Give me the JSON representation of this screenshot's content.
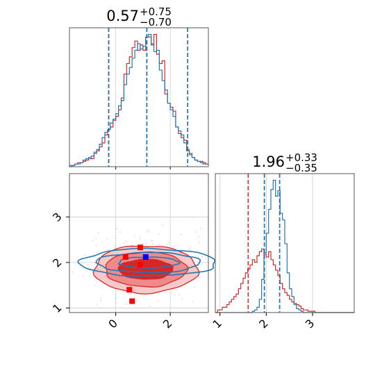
{
  "chart_data": [
    {
      "type": "histogram",
      "panel": "param1-marginal",
      "title": {
        "median": "0.57",
        "upper": "+0.75",
        "lower": "−0.70"
      },
      "xlim": [
        -0.85,
        1.7
      ],
      "ylim": [
        0,
        1.05
      ],
      "grid": true,
      "quantile_lines": {
        "red": [
          -0.13,
          0.57,
          1.32
        ],
        "blue": [
          -0.13,
          0.57,
          1.32
        ]
      },
      "series": [
        {
          "color": "#d62728",
          "bin_edges_start": -0.9,
          "bin_width": 0.05,
          "values": [
            0.0,
            0.0,
            0.01,
            0.02,
            0.03,
            0.03,
            0.05,
            0.05,
            0.07,
            0.06,
            0.1,
            0.12,
            0.15,
            0.18,
            0.24,
            0.28,
            0.3,
            0.35,
            0.38,
            0.43,
            0.52,
            0.7,
            0.78,
            0.83,
            0.9,
            0.95,
            0.88,
            0.92,
            0.88,
            0.98,
            0.98,
            0.92,
            1.0,
            0.85,
            0.78,
            0.8,
            0.55,
            0.48,
            0.45,
            0.42,
            0.3,
            0.25,
            0.22,
            0.2,
            0.12,
            0.1,
            0.07,
            0.05,
            0.04,
            0.04,
            0.03,
            0.02,
            0.01,
            0.01,
            0.0,
            0.0
          ]
        },
        {
          "color": "#1f77b4",
          "bin_edges_start": -0.9,
          "bin_width": 0.05,
          "values": [
            0.0,
            0.01,
            0.01,
            0.02,
            0.02,
            0.03,
            0.04,
            0.06,
            0.06,
            0.08,
            0.11,
            0.13,
            0.17,
            0.22,
            0.26,
            0.28,
            0.33,
            0.36,
            0.4,
            0.46,
            0.5,
            0.62,
            0.7,
            0.75,
            0.82,
            0.88,
            0.93,
            0.89,
            0.91,
            0.98,
            1.0,
            0.93,
            0.87,
            0.88,
            0.73,
            0.65,
            0.58,
            0.48,
            0.43,
            0.38,
            0.3,
            0.27,
            0.24,
            0.18,
            0.13,
            0.09,
            0.07,
            0.05,
            0.04,
            0.03,
            0.02,
            0.02,
            0.01,
            0.01,
            0.0,
            0.0
          ]
        }
      ]
    },
    {
      "type": "histogram",
      "panel": "param2-marginal",
      "title": {
        "median": "1.96",
        "upper": "+0.33",
        "lower": "−0.35"
      },
      "xlim": [
        0.9,
        3.9
      ],
      "xticks": [
        "1",
        "2",
        "3"
      ],
      "ylim": [
        0,
        1.05
      ],
      "grid": true,
      "quantile_lines": {
        "red": [
          1.61,
          1.96,
          2.29
        ],
        "blue": [
          1.96,
          2.29
        ]
      },
      "series": [
        {
          "color": "#d62728",
          "bin_edges_start": 0.9,
          "bin_width": 0.05,
          "values": [
            0.0,
            0.02,
            0.02,
            0.04,
            0.04,
            0.06,
            0.08,
            0.1,
            0.12,
            0.14,
            0.18,
            0.22,
            0.26,
            0.3,
            0.33,
            0.36,
            0.4,
            0.38,
            0.43,
            0.46,
            0.48,
            0.44,
            0.42,
            0.46,
            0.4,
            0.36,
            0.32,
            0.28,
            0.22,
            0.18,
            0.15,
            0.13,
            0.1,
            0.08,
            0.07,
            0.06,
            0.05,
            0.03,
            0.02,
            0.02,
            0.01,
            0.01,
            0.01,
            0.0,
            0.0,
            0.0,
            0.0,
            0.0,
            0.0,
            0.0,
            0.0,
            0.0,
            0.0,
            0.0,
            0.0,
            0.0,
            0.0,
            0.0,
            0.0,
            0.0
          ]
        },
        {
          "color": "#1f77b4",
          "bin_edges_start": 0.9,
          "bin_width": 0.05,
          "values": [
            0.0,
            0.0,
            0.0,
            0.0,
            0.0,
            0.0,
            0.0,
            0.0,
            0.0,
            0.0,
            0.0,
            0.0,
            0.0,
            0.0,
            0.0,
            0.0,
            0.01,
            0.02,
            0.04,
            0.1,
            0.25,
            0.45,
            0.6,
            0.78,
            0.93,
            1.0,
            0.88,
            0.92,
            0.75,
            0.7,
            0.52,
            0.3,
            0.18,
            0.12,
            0.06,
            0.03,
            0.02,
            0.01,
            0.0,
            0.0,
            0.0,
            0.0,
            0.0,
            0.0,
            0.0,
            0.0,
            0.0,
            0.0,
            0.0,
            0.0,
            0.0,
            0.0,
            0.0,
            0.0,
            0.0,
            0.0,
            0.0,
            0.0,
            0.0,
            0.0
          ]
        }
      ]
    },
    {
      "type": "contour",
      "panel": "joint-param1-param2",
      "xlim": [
        -0.85,
        1.7
      ],
      "ylim": [
        0.9,
        3.95
      ],
      "xticks": [
        "0",
        "2"
      ],
      "yticks": [
        "1",
        "2",
        "3"
      ],
      "grid": true,
      "red_contours": {
        "color": "#d62728",
        "center": [
          0.55,
          1.85
        ],
        "levels": [
          {
            "rx": 0.5,
            "ry": 0.22,
            "fill": "#d62728"
          },
          {
            "rx": 0.75,
            "ry": 0.38,
            "fill": "#ef8a8a"
          },
          {
            "rx": 0.95,
            "ry": 0.52,
            "fill": "#f8c9c9"
          }
        ]
      },
      "blue_contours": {
        "color": "#1f77b4",
        "center": [
          0.6,
          2.0
        ],
        "levels": [
          {
            "rx": 0.55,
            "ry": 0.12
          },
          {
            "rx": 0.95,
            "ry": 0.22
          },
          {
            "rx": 1.25,
            "ry": 0.3
          }
        ]
      },
      "markers": [
        {
          "color": "#ff0000",
          "x": 0.18,
          "y": 2.12
        },
        {
          "color": "#ff0000",
          "x": 0.45,
          "y": 2.33
        },
        {
          "color": "#ff0000",
          "x": 0.45,
          "y": 1.95
        },
        {
          "color": "#ff0000",
          "x": 0.25,
          "y": 1.4
        },
        {
          "color": "#ff0000",
          "x": 0.3,
          "y": 1.15
        },
        {
          "color": "#0000ff",
          "x": 0.55,
          "y": 2.12
        }
      ]
    }
  ]
}
